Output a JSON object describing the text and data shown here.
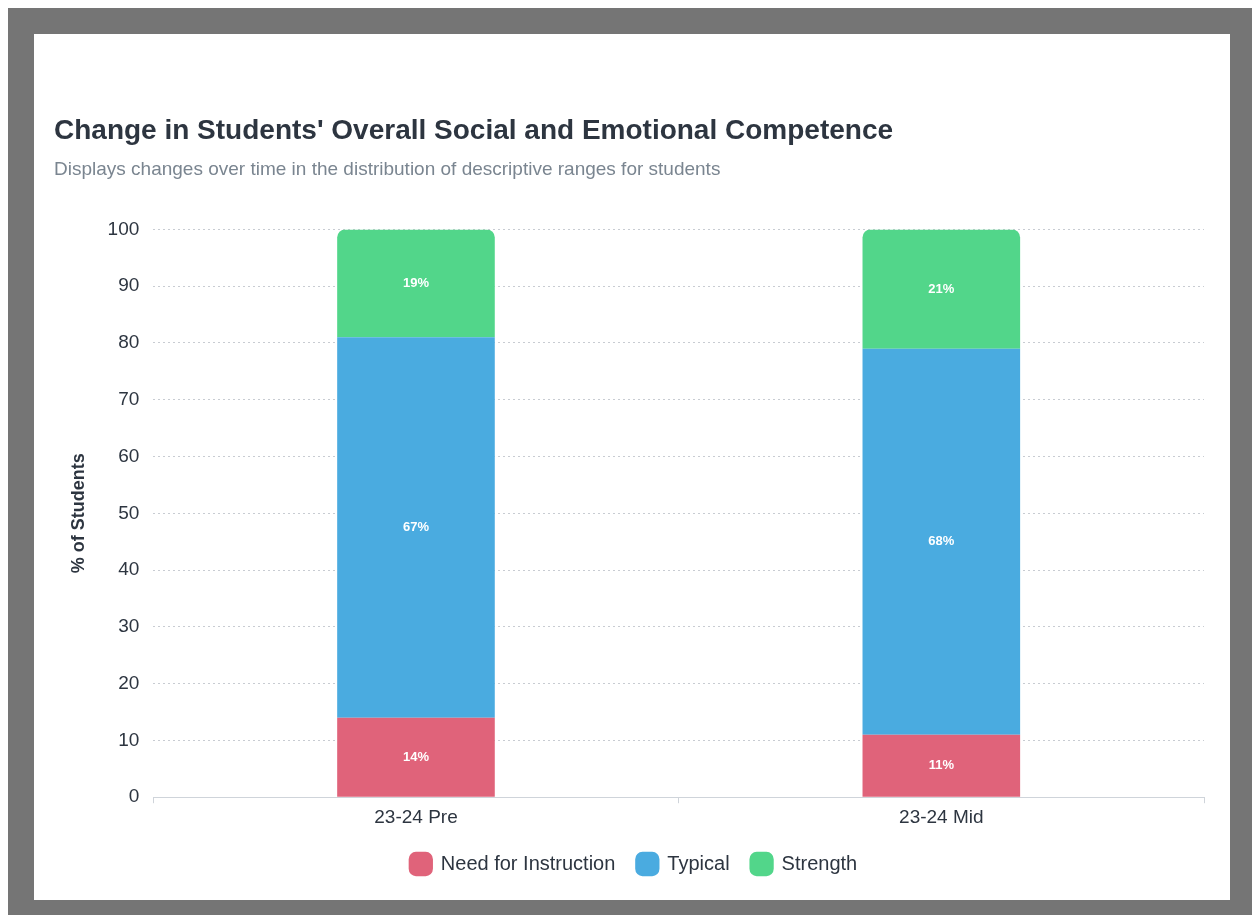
{
  "chart_data": {
    "type": "bar",
    "title": "Change in Students' Overall Social and Emotional Competence",
    "subtitle": "Displays changes over time in the distribution of descriptive ranges for students",
    "ylabel": "% of Students",
    "categories": [
      "23-24 Pre",
      "23-24 Mid"
    ],
    "stacked": true,
    "ylim": [
      0,
      100
    ],
    "yticks": [
      0,
      10,
      20,
      30,
      40,
      50,
      60,
      70,
      80,
      90,
      100
    ],
    "grid": "y",
    "legend": "bottom",
    "series": [
      {
        "name": "Need for Instruction",
        "color": "#e0637a",
        "values": [
          14,
          11
        ],
        "value_labels": [
          "14%",
          "11%"
        ]
      },
      {
        "name": "Typical",
        "color": "#4aabe0",
        "values": [
          67,
          68
        ],
        "value_labels": [
          "67%",
          "68%"
        ]
      },
      {
        "name": "Strength",
        "color": "#52d68a",
        "values": [
          19,
          21
        ],
        "value_labels": [
          "19%",
          "21%"
        ]
      }
    ]
  }
}
